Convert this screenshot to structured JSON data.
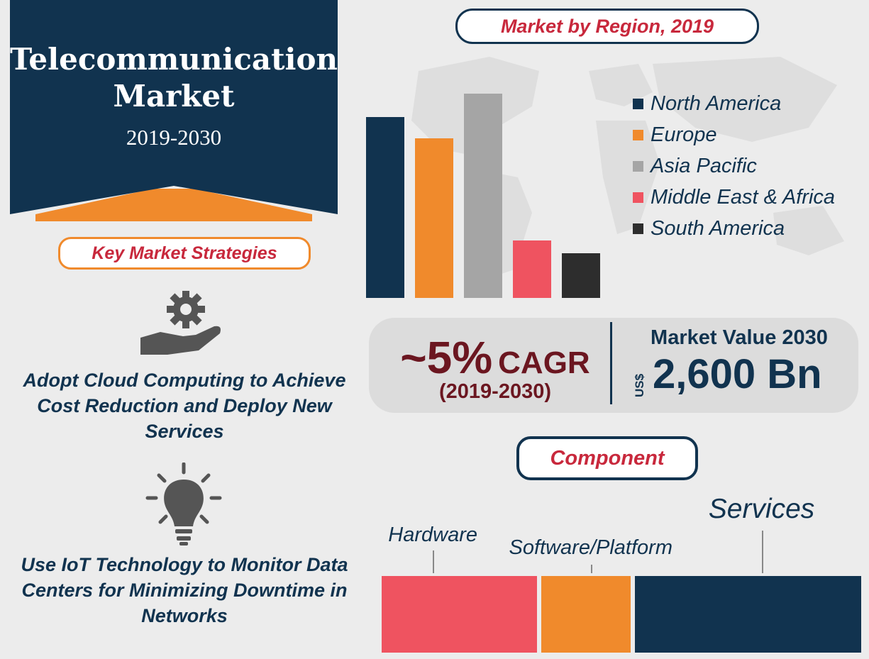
{
  "header": {
    "title": "Telecommunication Market",
    "years": "2019-2030"
  },
  "region_section": {
    "label": "Market by Region, 2019"
  },
  "strategies_section": {
    "label": "Key Market Strategies",
    "items": [
      {
        "text": "Adopt Cloud Computing to Achieve Cost Reduction and Deploy New Services",
        "icon": "gear-hand-icon"
      },
      {
        "text": "Use IoT Technology to Monitor Data Centers for Minimizing Downtime in Networks",
        "icon": "lightbulb-icon"
      }
    ]
  },
  "stats": {
    "cagr_value": "~5%",
    "cagr_label": "CAGR",
    "cagr_period": "(2019-2030)",
    "market_value_label": "Market Value 2030",
    "market_value_unit": "US$",
    "market_value": "2,600 Bn"
  },
  "component_section": {
    "label": "Component"
  },
  "colors": {
    "navy": "#11334f",
    "orange": "#f08a2c",
    "gray": "#a5a5a5",
    "red": "#ef5360",
    "dark": "#2d2d2d",
    "accent_red": "#c8283c",
    "maroon": "#6b1620"
  },
  "chart_data": [
    {
      "type": "bar",
      "title": "Market by Region, 2019",
      "categories": [
        "North America",
        "Europe",
        "Asia Pacific",
        "Middle East & Africa",
        "South America"
      ],
      "values": [
        85,
        75,
        96,
        27,
        21
      ],
      "colors": [
        "#11334f",
        "#f08a2c",
        "#a5a5a5",
        "#ef5360",
        "#2d2d2d"
      ],
      "ylim": [
        0,
        100
      ],
      "grid": false,
      "legend": "right",
      "value_note": "relative heights estimated; no axis printed"
    },
    {
      "type": "bar",
      "title": "Component",
      "categories": [
        "Hardware",
        "Software/Platform",
        "Services"
      ],
      "values": [
        33,
        19,
        48
      ],
      "colors": [
        "#ef5360",
        "#f08a2c",
        "#11334f"
      ],
      "orientation": "horizontal-stacked",
      "value_note": "percent share estimated from segment widths"
    }
  ]
}
